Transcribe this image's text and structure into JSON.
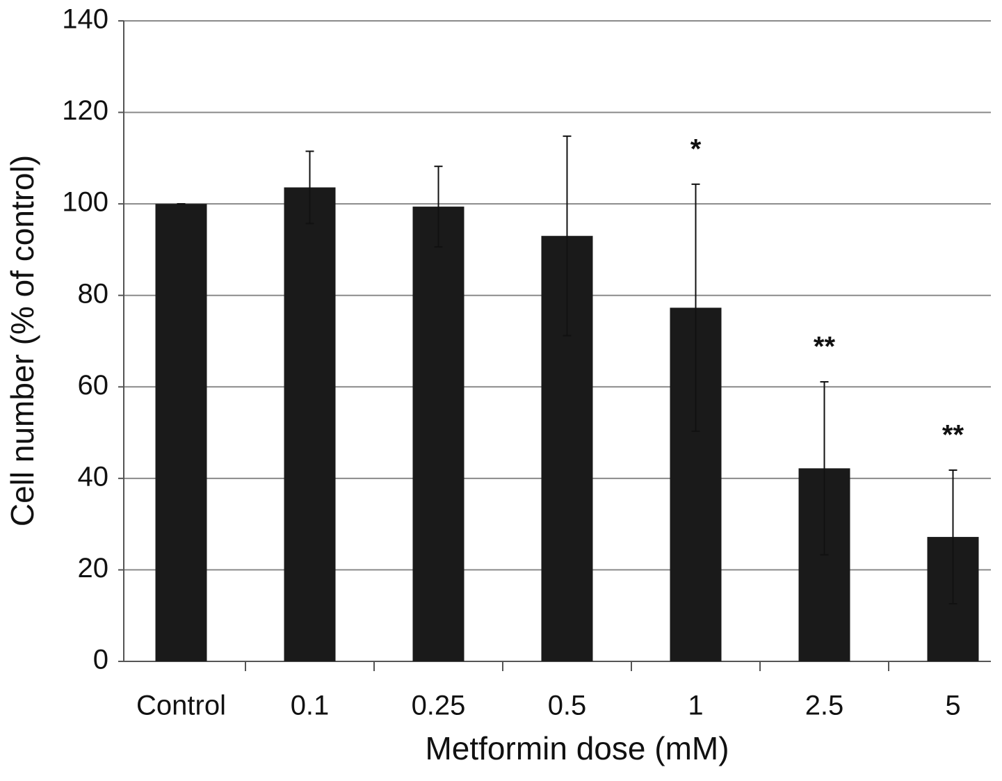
{
  "chart_data": {
    "type": "bar",
    "x_label": "Metformin dose (mM)",
    "y_label": "Cell number (% of control)",
    "categories": [
      "Control",
      "0.1",
      "0.25",
      "0.5",
      "1",
      "2.5",
      "5"
    ],
    "values": [
      100,
      103.6,
      99.4,
      93,
      77.3,
      42.2,
      27.2
    ],
    "errors": [
      0,
      7.9,
      8.8,
      21.8,
      27,
      18.9,
      14.6
    ],
    "annotations": [
      null,
      null,
      null,
      null,
      "*",
      "**",
      "**"
    ],
    "color": "#1a1a1a",
    "ylim": [
      0,
      140
    ],
    "yticks": [
      0,
      20,
      40,
      60,
      80,
      100,
      120,
      140
    ],
    "grid": true
  }
}
